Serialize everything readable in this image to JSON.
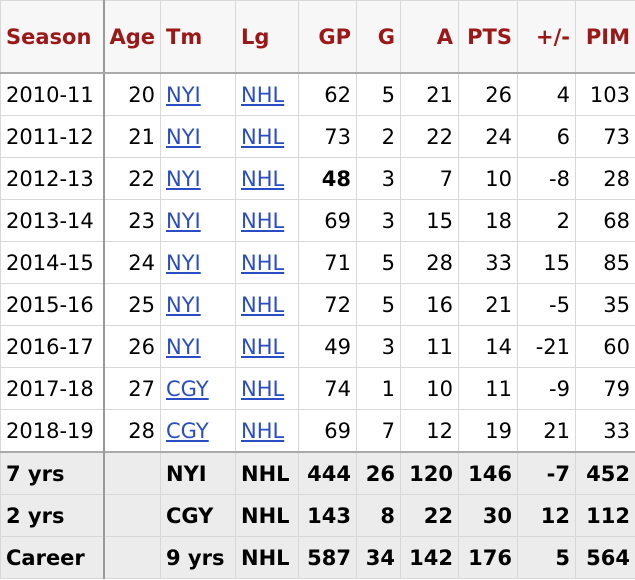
{
  "table": {
    "header": [
      "Season",
      "Age",
      "Tm",
      "Lg",
      "GP",
      "G",
      "A",
      "PTS",
      "+/-",
      "PIM"
    ],
    "rows": [
      [
        "2010-11",
        "20",
        "NYI",
        "NHL",
        "62",
        "5",
        "21",
        "26",
        "4",
        "103"
      ],
      [
        "2011-12",
        "21",
        "NYI",
        "NHL",
        "73",
        "2",
        "22",
        "24",
        "6",
        "73"
      ],
      [
        "2012-13",
        "22",
        "NYI",
        "NHL",
        "48",
        "3",
        "7",
        "10",
        "-8",
        "28"
      ],
      [
        "2013-14",
        "23",
        "NYI",
        "NHL",
        "69",
        "3",
        "15",
        "18",
        "2",
        "68"
      ],
      [
        "2014-15",
        "24",
        "NYI",
        "NHL",
        "71",
        "5",
        "28",
        "33",
        "15",
        "85"
      ],
      [
        "2015-16",
        "25",
        "NYI",
        "NHL",
        "72",
        "5",
        "16",
        "21",
        "-5",
        "35"
      ],
      [
        "2016-17",
        "26",
        "NYI",
        "NHL",
        "49",
        "3",
        "11",
        "14",
        "-21",
        "60"
      ],
      [
        "2017-18",
        "27",
        "CGY",
        "NHL",
        "74",
        "1",
        "10",
        "11",
        "-9",
        "79"
      ],
      [
        "2018-19",
        "28",
        "CGY",
        "NHL",
        "69",
        "7",
        "12",
        "19",
        "21",
        "33"
      ]
    ],
    "summary": [
      [
        "7 yrs",
        null,
        "NYI",
        "NHL",
        "444",
        "26",
        "120",
        "146",
        "-7",
        "452"
      ],
      [
        "2 yrs",
        null,
        "CGY",
        "NHL",
        "143",
        "8",
        "22",
        "30",
        "12",
        "112"
      ],
      [
        "Career",
        null,
        "9 yrs",
        "NHL",
        "587",
        "34",
        "142",
        "176",
        "5",
        "564"
      ]
    ]
  }
}
